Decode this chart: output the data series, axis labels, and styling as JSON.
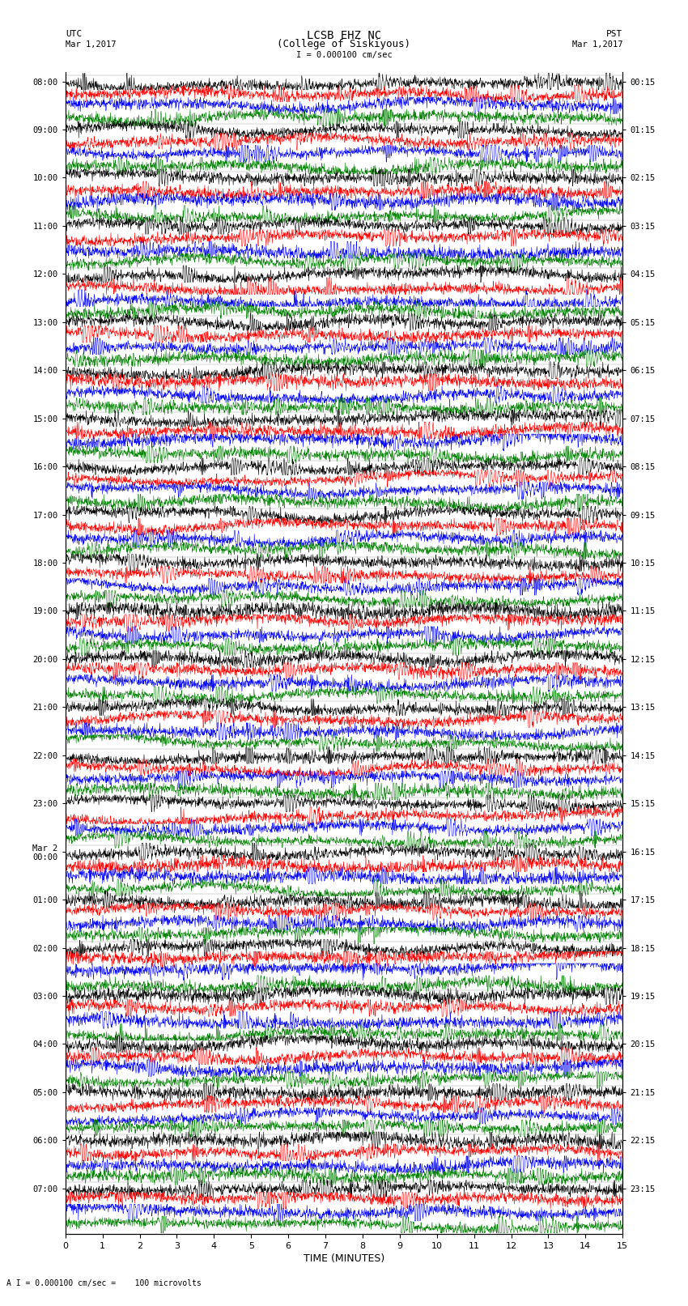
{
  "title_line1": "LCSB EHZ NC",
  "title_line2": "(College of Siskiyous)",
  "scale_text": "I = 0.000100 cm/sec",
  "bottom_text": "A I = 0.000100 cm/sec =    100 microvolts",
  "xlabel": "TIME (MINUTES)",
  "utc_label": "UTC",
  "utc_date": "Mar 1,2017",
  "pst_label": "PST",
  "pst_date": "Mar 1,2017",
  "left_times_labeled": [
    "08:00",
    "09:00",
    "10:00",
    "11:00",
    "12:00",
    "13:00",
    "14:00",
    "15:00",
    "16:00",
    "17:00",
    "18:00",
    "19:00",
    "20:00",
    "21:00",
    "22:00",
    "23:00",
    "Mar 2\n00:00",
    "01:00",
    "02:00",
    "03:00",
    "04:00",
    "05:00",
    "06:00",
    "07:00"
  ],
  "right_times_labeled": [
    "00:15",
    "01:15",
    "02:15",
    "03:15",
    "04:15",
    "05:15",
    "06:15",
    "07:15",
    "08:15",
    "09:15",
    "10:15",
    "11:15",
    "12:15",
    "13:15",
    "14:15",
    "15:15",
    "16:15",
    "17:15",
    "18:15",
    "19:15",
    "20:15",
    "21:15",
    "22:15",
    "23:15"
  ],
  "colors": [
    "black",
    "red",
    "blue",
    "green"
  ],
  "n_groups": 24,
  "rows_per_group": 4,
  "n_points": 1800,
  "x_min": 0,
  "x_max": 15,
  "figsize": [
    8.5,
    16.13
  ],
  "dpi": 100,
  "bg_color": "white",
  "trace_amplitude": 0.35,
  "noise_std": 1.0,
  "linewidth": 0.4
}
